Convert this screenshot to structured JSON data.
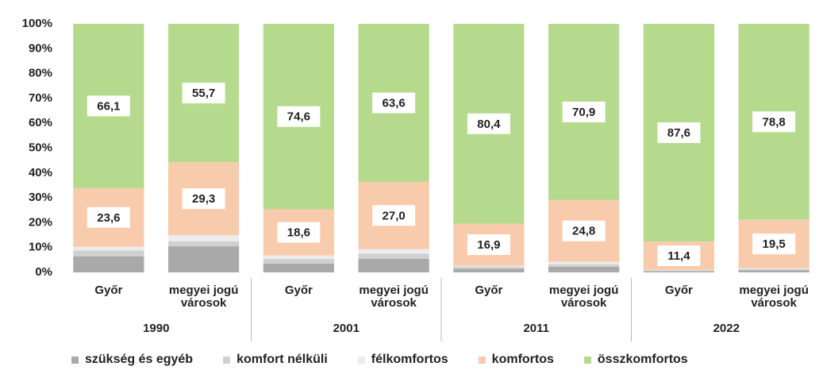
{
  "chart_data": {
    "type": "stacked_bar_100",
    "categories": [
      "Győr",
      "megyei jogú városok",
      "Győr",
      "megyei jogú városok",
      "Győr",
      "megyei jogú városok",
      "Győr",
      "megyei jogú városok"
    ],
    "groups": [
      "1990",
      "2001",
      "2011",
      "2022"
    ],
    "ylim": [
      0,
      100
    ],
    "yticks": [
      {
        "value": 0,
        "label": "0%"
      },
      {
        "value": 10,
        "label": "10%"
      },
      {
        "value": 20,
        "label": "20%"
      },
      {
        "value": 30,
        "label": "30%"
      },
      {
        "value": 40,
        "label": "40%"
      },
      {
        "value": 50,
        "label": "50%"
      },
      {
        "value": 60,
        "label": "60%"
      },
      {
        "value": 70,
        "label": "70%"
      },
      {
        "value": 80,
        "label": "80%"
      },
      {
        "value": 90,
        "label": "90%"
      },
      {
        "value": 100,
        "label": "100%"
      }
    ],
    "grid": false,
    "legend": "bottom",
    "series": [
      {
        "name": "szükség és egyéb",
        "color": "#a9a9a9",
        "values": [
          6.5,
          10.5,
          3.5,
          5.5,
          1.5,
          2.3,
          0.5,
          0.8
        ]
      },
      {
        "name": "komfort nélküli",
        "color": "#d0d0d0",
        "values": [
          2.3,
          2.0,
          2.0,
          2.0,
          0.7,
          1.0,
          0.3,
          0.5
        ]
      },
      {
        "name": "félkomfortos",
        "color": "#ececec",
        "values": [
          1.5,
          2.5,
          1.3,
          1.9,
          0.5,
          1.0,
          0.2,
          0.4
        ]
      },
      {
        "name": "komfortos",
        "color": "#f8cbad",
        "values": [
          23.6,
          29.3,
          18.6,
          27.0,
          16.9,
          24.8,
          11.4,
          19.5
        ],
        "value_labels": [
          "23,6",
          "29,3",
          "18,6",
          "27,0",
          "16,9",
          "24,8",
          "11,4",
          "19,5"
        ]
      },
      {
        "name": "összkomfortos",
        "color": "#b5da8d",
        "values": [
          66.1,
          55.7,
          74.6,
          63.6,
          80.4,
          70.9,
          87.6,
          78.8
        ],
        "value_labels": [
          "66,1",
          "55,7",
          "74,6",
          "63,6",
          "80,4",
          "70,9",
          "87,6",
          "78,8"
        ]
      }
    ]
  }
}
